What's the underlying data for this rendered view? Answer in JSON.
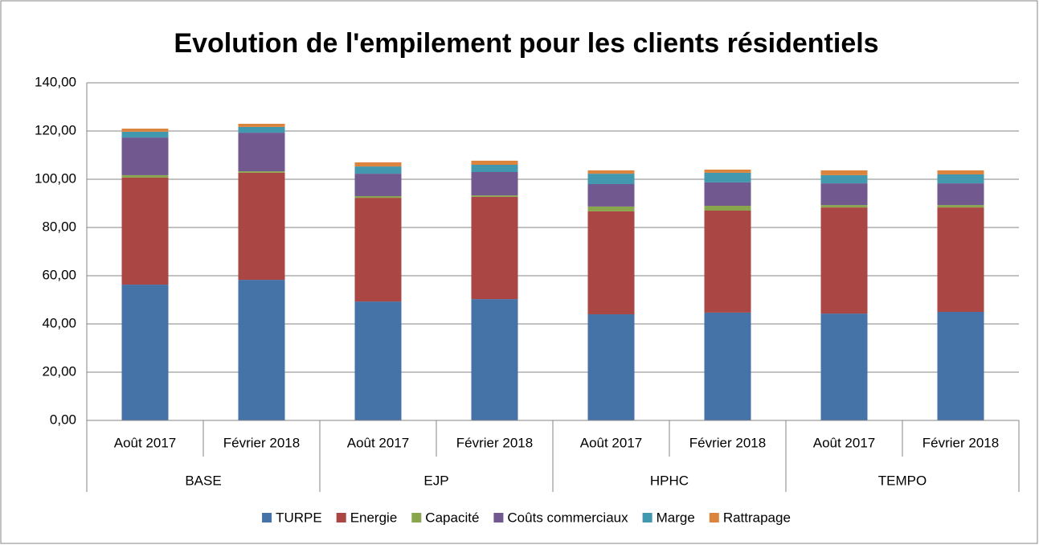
{
  "chart_data": {
    "type": "stacked_bar",
    "title": "Evolution de l'empilement pour les clients résidentiels",
    "categories": [
      "Août 2017",
      "Février 2018",
      "Août 2017",
      "Février 2018",
      "Août 2017",
      "Février 2018",
      "Août 2017",
      "Février 2018"
    ],
    "groups": [
      "BASE",
      "EJP",
      "HPHC",
      "TEMPO"
    ],
    "series": [
      {
        "name": "TURPE",
        "color": "#4572a7",
        "values": [
          56.3,
          58.3,
          49.3,
          50.3,
          44.0,
          44.7,
          44.3,
          45.0
        ]
      },
      {
        "name": "Energie",
        "color": "#aa4643",
        "values": [
          44.4,
          44.4,
          43.0,
          42.4,
          42.7,
          42.3,
          44.0,
          43.3
        ]
      },
      {
        "name": "Capacité",
        "color": "#89a54e",
        "values": [
          1.0,
          0.6,
          0.7,
          0.6,
          2.0,
          2.0,
          1.0,
          1.0
        ]
      },
      {
        "name": "Coûts commerciaux",
        "color": "#71588f",
        "values": [
          15.6,
          16.0,
          9.3,
          9.7,
          9.3,
          9.7,
          9.0,
          9.0
        ]
      },
      {
        "name": "Marge",
        "color": "#4198af",
        "values": [
          2.4,
          2.4,
          3.0,
          3.0,
          4.3,
          4.0,
          3.4,
          3.7
        ]
      },
      {
        "name": "Rattrapage",
        "color": "#db843d",
        "values": [
          1.3,
          1.3,
          1.7,
          1.7,
          1.4,
          1.3,
          2.0,
          1.7
        ]
      }
    ],
    "ylim": [
      0,
      140
    ],
    "yticks": [
      {
        "value": 0,
        "label": "0,00"
      },
      {
        "value": 20,
        "label": "20,00"
      },
      {
        "value": 40,
        "label": "40,00"
      },
      {
        "value": 60,
        "label": "60,00"
      },
      {
        "value": 80,
        "label": "80,00"
      },
      {
        "value": 100,
        "label": "100,00"
      },
      {
        "value": 120,
        "label": "120,00"
      },
      {
        "value": 140,
        "label": "140,00"
      }
    ],
    "grid": true,
    "legend": "bottom"
  }
}
